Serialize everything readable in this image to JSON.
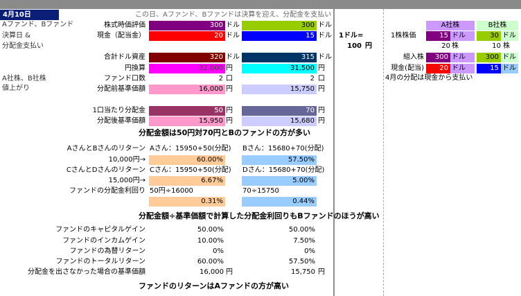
{
  "header": {
    "date": "4月10日",
    "banner": "この日、Aファンド、Bファンドは決算を迎え、分配金を支払い"
  },
  "left_notes": {
    "note1_line1": "Aファンド、Bファンド",
    "note1_line2": "決算日 &",
    "note1_line3": "分配金支払い",
    "note2_line1": "A社株、B社株",
    "note2_line2": "値上がり"
  },
  "rows": {
    "stock_value": {
      "label": "株式時価評価",
      "a": "300",
      "b": "300",
      "unit": "ドル"
    },
    "cash": {
      "label": "現金（配当金）",
      "a": "20",
      "b": "15",
      "unit": "ドル"
    },
    "total_usd": {
      "label": "合計ドル資産",
      "a": "320",
      "b": "315",
      "unit": "ドル"
    },
    "yen": {
      "label": "円換算",
      "a": "32,000",
      "b": "31,500",
      "unit": "円"
    },
    "units": {
      "label": "ファンド口数",
      "a": "2",
      "b": "2",
      "unit": "口"
    },
    "nav_before": {
      "label": "分配前基準価額",
      "a": "16,000",
      "b": "15,750",
      "unit": "円"
    },
    "dist_per_unit": {
      "label": "1口当たり分配金",
      "a": "50",
      "b": "70",
      "unit": "円"
    },
    "nav_after": {
      "label": "分配後基準価額",
      "a": "15,950",
      "b": "15,680",
      "unit": "円"
    }
  },
  "fx": {
    "label": "1ドル=",
    "value": "100",
    "unit": "円"
  },
  "stocks": {
    "header_a": "A社株",
    "header_b": "B社株",
    "price_label": "1株株価",
    "price_a": "15",
    "price_b": "30",
    "dollar": "ドル",
    "shares_a": "20",
    "shares_b": "10",
    "shares_unit": "株",
    "bought_label": "組入株",
    "bought_a": "300",
    "bought_b": "300",
    "cash_label": "現金(配当)",
    "cash_a": "20",
    "cash_b": "15",
    "note": "4月の分配は現金から支払い"
  },
  "heading1": "分配金額は50円対70円とBのファンドの方が多い",
  "returns": {
    "ab_label": "AさんとBさんのリターン",
    "a_formula": "Aさん：15950+50(分配)",
    "b_formula": "Bさん：15680+70(分配)",
    "ab_invest": "10,000円→",
    "a_pct": "60.00%",
    "b_pct": "57.50%",
    "cd_label": "CさんとDさんのリターン",
    "c_formula": "Cさん：15950+50(分配)",
    "d_formula": "Dさん：15680+70(分配)",
    "cd_invest": "15,000円→",
    "c_pct": "6.67%",
    "d_pct": "5.00%",
    "yield_label": "ファンドの分配金利回り",
    "ya_formula": "50円÷16000",
    "yb_formula": "70÷15750",
    "ya_pct": "0.31%",
    "yb_pct": "0.44%"
  },
  "heading2": "分配金額÷基準価額で計算した分配金利回りもBファンドのほうが高い",
  "breakdown": [
    {
      "label": "ファンドのキャピタルゲイン",
      "a": "50.00%",
      "b": "50.00%"
    },
    {
      "label": "ファンドのインカムゲイン",
      "a": "10.00%",
      "b": "7.50%"
    },
    {
      "label": "ファンドの為替リターン",
      "a": "0%",
      "b": "0%"
    },
    {
      "label": "ファンドのトータルリターン",
      "a": "60.00%",
      "b": "57.50%"
    },
    {
      "label": "分配金を出さなかった場合の基準価額",
      "a": "16,000",
      "b": "15,750",
      "unit": "円"
    }
  ],
  "heading3": "ファンドのリターンはAファンドの方が高い",
  "colors": {
    "green_bar": "#99cc00",
    "red": "#ff0000",
    "blue": "#0000ff",
    "maroon": "#800000",
    "navy": "#003366",
    "magenta": "#ff00ff",
    "cyan": "#00ffff",
    "pink": "#ff99cc",
    "lavender": "#ccccff",
    "plum": "#993366",
    "slate": "#666699",
    "peach": "#ffcc99",
    "lightblue": "#99ccff",
    "purple": "#800080",
    "lightpurple": "#cc99ff",
    "lightgreen": "#ccffcc",
    "paleblue": "#99ccff"
  }
}
